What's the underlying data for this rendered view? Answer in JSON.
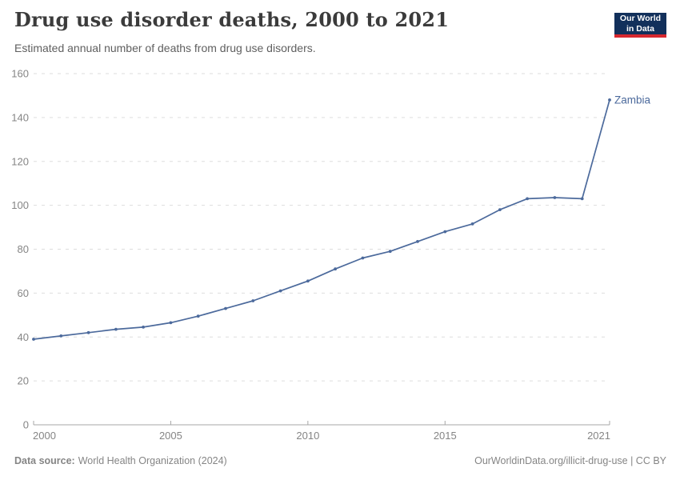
{
  "header": {
    "title": "Drug use disorder deaths, 2000 to 2021",
    "subtitle": "Estimated annual number of deaths from drug use disorders."
  },
  "logo": {
    "line1": "Our World",
    "line2": "in Data"
  },
  "chart_data": {
    "type": "line",
    "title": "Drug use disorder deaths, 2000 to 2021",
    "subtitle": "Estimated annual number of deaths from drug use disorders.",
    "xlabel": "",
    "ylabel": "",
    "ylim": [
      0,
      160
    ],
    "ytick_interval": 20,
    "xlim": [
      2000,
      2021
    ],
    "xticks": [
      2000,
      2005,
      2010,
      2015,
      2021
    ],
    "grid": "horizontal-dashed",
    "legend_position": "end-of-line-label",
    "categories": [
      2000,
      2001,
      2002,
      2003,
      2004,
      2005,
      2006,
      2007,
      2008,
      2009,
      2010,
      2011,
      2012,
      2013,
      2014,
      2015,
      2016,
      2017,
      2018,
      2019,
      2020,
      2021
    ],
    "series": [
      {
        "name": "Zambia",
        "color": "#4c6a9c",
        "values": [
          39,
          40.5,
          42,
          43.5,
          44.5,
          46.5,
          49.5,
          53,
          56.5,
          61,
          65.5,
          71,
          76,
          79,
          83.5,
          88,
          91.5,
          98,
          103,
          103.5,
          103,
          148
        ]
      }
    ]
  },
  "footer": {
    "datasource_label": "Data source:",
    "datasource_value": "World Health Organization (2024)",
    "credit": "OurWorldinData.org/illicit-drug-use | CC BY"
  },
  "colors": {
    "line": "#4c6a9c",
    "grid": "#dddddd",
    "axis": "#a7a7a7",
    "tick_label": "#858585",
    "title": "#3b3b3b",
    "subtitle": "#5f5f5f",
    "footer": "#858585",
    "logo_bg": "#12305b",
    "logo_accent": "#d7282f"
  }
}
